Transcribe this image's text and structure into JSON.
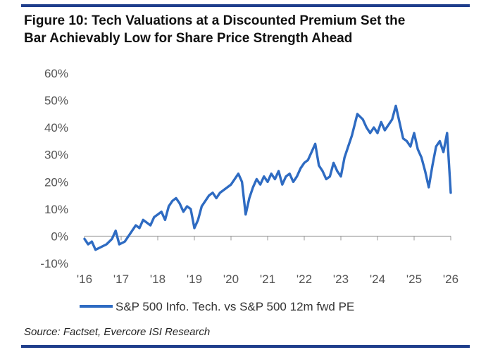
{
  "title": {
    "line1": "Figure 10: Tech Valuations at a Discounted Premium Set the",
    "line2": "Bar Achievably Low for Share Price Strength Ahead"
  },
  "source": "Source: Factset, Evercore ISI Research",
  "colors": {
    "line": "#2e6bc2",
    "rule": "#1f3e8c",
    "axis": "#555555"
  },
  "chart_data": {
    "type": "line",
    "title": "Figure 10: Tech Valuations at a Discounted Premium Set the Bar Achievably Low for Share Price Strength Ahead",
    "xlabel": "",
    "ylabel": "",
    "xlim": [
      2016,
      2026
    ],
    "ylim": [
      -10,
      60
    ],
    "y_ticks": [
      "-10%",
      "0%",
      "10%",
      "20%",
      "30%",
      "40%",
      "50%",
      "60%"
    ],
    "x_ticks": [
      "'16",
      "'17",
      "'18",
      "'19",
      "'20",
      "'21",
      "'22",
      "'23",
      "'24",
      "'25",
      "'26"
    ],
    "grid": false,
    "legend_position": "bottom",
    "series": [
      {
        "name": "S&P 500 Info. Tech. vs S&P 500 12m fwd PE",
        "x": [
          2016.0,
          2016.1,
          2016.2,
          2016.3,
          2016.45,
          2016.6,
          2016.75,
          2016.85,
          2016.95,
          2017.1,
          2017.2,
          2017.3,
          2017.4,
          2017.5,
          2017.6,
          2017.7,
          2017.8,
          2017.9,
          2018.0,
          2018.1,
          2018.2,
          2018.3,
          2018.4,
          2018.5,
          2018.6,
          2018.7,
          2018.8,
          2018.9,
          2019.0,
          2019.1,
          2019.2,
          2019.3,
          2019.4,
          2019.5,
          2019.6,
          2019.7,
          2019.8,
          2019.9,
          2020.0,
          2020.1,
          2020.2,
          2020.3,
          2020.4,
          2020.5,
          2020.6,
          2020.7,
          2020.8,
          2020.9,
          2021.0,
          2021.1,
          2021.2,
          2021.3,
          2021.4,
          2021.5,
          2021.6,
          2021.7,
          2021.8,
          2021.9,
          2022.0,
          2022.1,
          2022.2,
          2022.3,
          2022.4,
          2022.5,
          2022.6,
          2022.7,
          2022.8,
          2022.9,
          2023.0,
          2023.1,
          2023.2,
          2023.3,
          2023.45,
          2023.6,
          2023.7,
          2023.8,
          2023.9,
          2024.0,
          2024.1,
          2024.2,
          2024.3,
          2024.4,
          2024.5,
          2024.6,
          2024.7,
          2024.8,
          2024.9,
          2025.0,
          2025.1,
          2025.2,
          2025.3,
          2025.4,
          2025.5,
          2025.6,
          2025.7,
          2025.8,
          2025.9,
          2026.0
        ],
        "values": [
          -1,
          -3,
          -2,
          -5,
          -4,
          -3,
          -1,
          2,
          -3,
          -2,
          0,
          2,
          4,
          3,
          6,
          5,
          4,
          7,
          8,
          9,
          6,
          11,
          13,
          14,
          12,
          9,
          11,
          10,
          3,
          6,
          11,
          13,
          15,
          16,
          14,
          16,
          17,
          18,
          19,
          21,
          23,
          20,
          8,
          14,
          18,
          21,
          19,
          22,
          20,
          23,
          21,
          24,
          19,
          22,
          23,
          20,
          22,
          25,
          27,
          28,
          31,
          34,
          26,
          24,
          21,
          22,
          27,
          24,
          22,
          29,
          33,
          37,
          45,
          43,
          40,
          38,
          40,
          38,
          42,
          39,
          41,
          43,
          48,
          42,
          36,
          35,
          33,
          38,
          32,
          29,
          24,
          18,
          26,
          33,
          35,
          31,
          38,
          16
        ]
      }
    ]
  }
}
